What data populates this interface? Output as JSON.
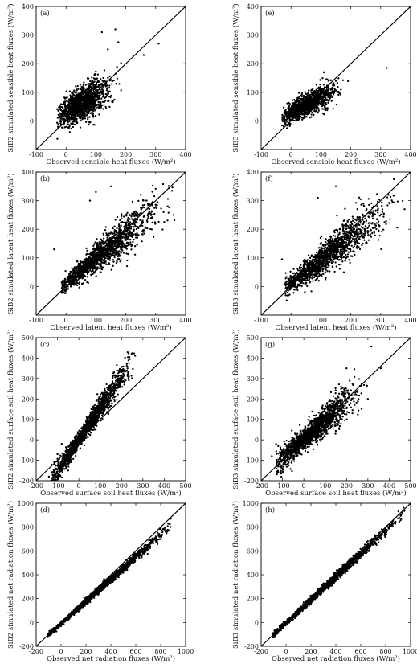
{
  "figure": {
    "type": "grid of scatter plots",
    "rows": 4,
    "columns": 2
  },
  "chart_data": [
    {
      "type": "scatter",
      "panel": "(a)",
      "xlabel": "Observed sensible heat fluxes (W/m²)",
      "ylabel": "SiB2 simulated sensible heat fluxes (W/m²)",
      "xlim": [
        -100,
        400
      ],
      "ylim": [
        -100,
        400
      ],
      "xticks": [
        -100,
        0,
        100,
        200,
        300,
        400
      ],
      "yticks": [
        0,
        100,
        200,
        300,
        400
      ],
      "one_to_one_line": true,
      "cloud": {
        "n": 1300,
        "x_mean": 55,
        "x_sd": 42,
        "x_min": -30,
        "x_max": 330,
        "intercept": 28,
        "slope": 0.62,
        "noise_sd": 24,
        "noise_growth": 0.08
      },
      "points": [
        [
          120,
          310
        ],
        [
          165,
          320
        ],
        [
          310,
          270
        ],
        [
          175,
          275
        ],
        [
          140,
          250
        ],
        [
          260,
          230
        ],
        [
          95,
          160
        ]
      ]
    },
    {
      "type": "scatter",
      "panel": "(e)",
      "xlabel": "Observed sensible heat fluxes (W/m²)",
      "ylabel": "SiB3 simulated sensible heat fluxes (W/m²)",
      "xlim": [
        -100,
        400
      ],
      "ylim": [
        -100,
        400
      ],
      "xticks": [
        -100,
        0,
        100,
        200,
        300,
        400
      ],
      "yticks": [
        0,
        100,
        200,
        300,
        400
      ],
      "one_to_one_line": true,
      "cloud": {
        "n": 1300,
        "x_mean": 55,
        "x_sd": 42,
        "x_min": -30,
        "x_max": 240,
        "intercept": 28,
        "slope": 0.55,
        "noise_sd": 16,
        "noise_growth": 0.05
      },
      "points": [
        [
          320,
          185
        ],
        [
          110,
          170
        ],
        [
          150,
          140
        ]
      ]
    },
    {
      "type": "scatter",
      "panel": "(b)",
      "xlabel": "Observed latent heat fluxes (W/m²)",
      "ylabel": "SiB2 simulated latent heat fluxes (W/m²)",
      "xlim": [
        -100,
        400
      ],
      "ylim": [
        -100,
        400
      ],
      "xticks": [
        -100,
        0,
        100,
        200,
        300,
        400
      ],
      "yticks": [
        0,
        100,
        200,
        300,
        400
      ],
      "one_to_one_line": true,
      "cloud": {
        "n": 1500,
        "x_mean": 110,
        "x_sd": 95,
        "x_min": -15,
        "x_max": 370,
        "intercept": 12,
        "slope": 0.85,
        "noise_sd": 14,
        "noise_growth": 0.1
      },
      "points": [
        [
          -40,
          130
        ],
        [
          80,
          300
        ],
        [
          100,
          330
        ],
        [
          150,
          350
        ],
        [
          250,
          320
        ],
        [
          340,
          280
        ],
        [
          360,
          250
        ]
      ]
    },
    {
      "type": "scatter",
      "panel": "(f)",
      "xlabel": "Observed latent heat fluxes (W/m²)",
      "ylabel": "SiB3 simulated latent heat fluxes (W/m²)",
      "xlim": [
        -100,
        400
      ],
      "ylim": [
        -100,
        400
      ],
      "xticks": [
        -100,
        0,
        100,
        200,
        300,
        400
      ],
      "yticks": [
        0,
        100,
        200,
        300,
        400
      ],
      "one_to_one_line": true,
      "cloud": {
        "n": 1500,
        "x_mean": 120,
        "x_sd": 90,
        "x_min": -20,
        "x_max": 380,
        "intercept": 10,
        "slope": 0.82,
        "noise_sd": 16,
        "noise_growth": 0.1
      },
      "points": [
        [
          150,
          350
        ],
        [
          90,
          310
        ],
        [
          -30,
          95
        ],
        [
          330,
          290
        ],
        [
          380,
          270
        ]
      ]
    },
    {
      "type": "scatter",
      "panel": "(c)",
      "xlabel": "Observed surface soil heat fluxes (W/m²)",
      "ylabel": "SiB2 simulated surface soil heat fluxes (W/m²)",
      "xlim": [
        -200,
        500
      ],
      "ylim": [
        -200,
        500
      ],
      "xticks": [
        -200,
        -100,
        0,
        100,
        200,
        300,
        400,
        500
      ],
      "yticks": [
        -200,
        -100,
        0,
        100,
        200,
        300,
        400,
        500
      ],
      "one_to_one_line": true,
      "cloud": {
        "n": 1700,
        "x_mean": 40,
        "x_sd": 95,
        "x_min": -130,
        "x_max": 265,
        "intercept": 0,
        "slope": 1.55,
        "noise_sd": 18,
        "noise_growth": 0.1
      },
      "points": [
        [
          -100,
          -70
        ],
        [
          -80,
          -20
        ],
        [
          -140,
          -180
        ],
        [
          -50,
          -150
        ]
      ]
    },
    {
      "type": "scatter",
      "panel": "(g)",
      "xlabel": "Observed surface soil heat fluxes (W/m²)",
      "ylabel": "SiB3 simulated surface soil heat fluxes (W/m²)",
      "xlim": [
        -200,
        500
      ],
      "ylim": [
        -200,
        500
      ],
      "xticks": [
        -200,
        -100,
        0,
        100,
        200,
        300,
        400,
        500
      ],
      "yticks": [
        -200,
        -100,
        0,
        100,
        200,
        300,
        400,
        500
      ],
      "one_to_one_line": true,
      "cloud": {
        "n": 1700,
        "x_mean": 40,
        "x_sd": 95,
        "x_min": -130,
        "x_max": 330,
        "intercept": 0,
        "slope": 0.95,
        "noise_sd": 24,
        "noise_growth": 0.12
      },
      "points": [
        [
          -150,
          -80
        ],
        [
          -120,
          -30
        ],
        [
          360,
          350
        ],
        [
          200,
          350
        ],
        [
          300,
          200
        ]
      ]
    },
    {
      "type": "scatter",
      "panel": "(d)",
      "xlabel": "Observed net radiation fluxes (W/m²)",
      "ylabel": "SiB2 simulated net radiation fluxes (W/m²)",
      "xlim": [
        -200,
        1000
      ],
      "ylim": [
        -200,
        1000
      ],
      "xticks": [
        -200,
        0,
        200,
        400,
        600,
        800,
        1000
      ],
      "yticks": [
        -200,
        0,
        200,
        400,
        600,
        800,
        1000
      ],
      "one_to_one_line": true,
      "cloud": {
        "n": 1700,
        "x_mean": 300,
        "x_sd": 260,
        "x_min": -110,
        "x_max": 880,
        "intercept": -10,
        "slope": 0.93,
        "noise_sd": 9,
        "noise_growth": 0.015
      },
      "points": [
        [
          880,
          870
        ],
        [
          860,
          830
        ]
      ]
    },
    {
      "type": "scatter",
      "panel": "(h)",
      "xlabel": "Observed net radiation fluxes (W/m²)",
      "ylabel": "SiB3 simulated net radiation fluxes (W/m²)",
      "xlim": [
        -200,
        1000
      ],
      "ylim": [
        -200,
        1000
      ],
      "xticks": [
        -200,
        0,
        200,
        400,
        600,
        800,
        1000
      ],
      "yticks": [
        -200,
        0,
        200,
        400,
        600,
        800,
        1000
      ],
      "one_to_one_line": true,
      "cloud": {
        "n": 1700,
        "x_mean": 320,
        "x_sd": 260,
        "x_min": -110,
        "x_max": 960,
        "intercept": -5,
        "slope": 0.97,
        "noise_sd": 10,
        "noise_growth": 0.015
      },
      "points": [
        [
          950,
          935
        ],
        [
          920,
          900
        ]
      ]
    }
  ]
}
